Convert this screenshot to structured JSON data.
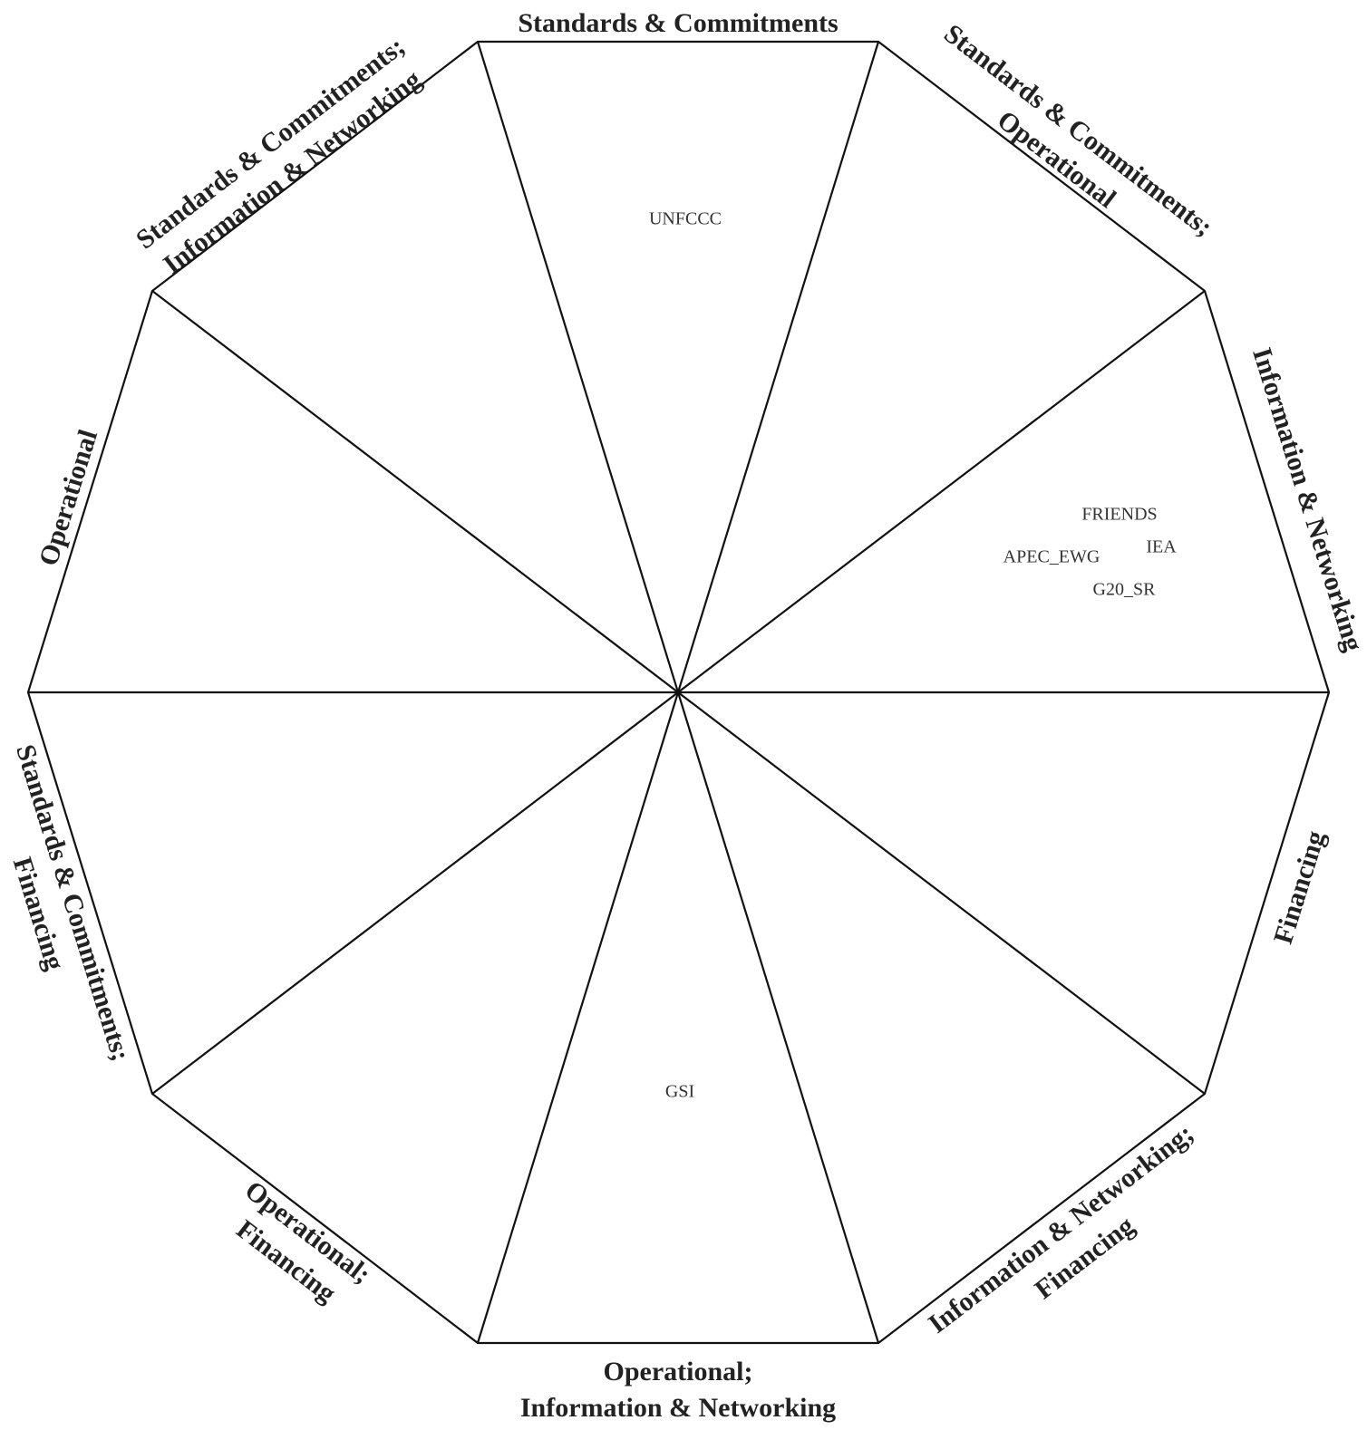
{
  "categories": [
    {
      "lines": [
        "Standards & Commitments"
      ]
    },
    {
      "lines": [
        "Standards & Commitments;",
        "Operational"
      ]
    },
    {
      "lines": [
        "Information & Networking"
      ]
    },
    {
      "lines": [
        "Financing"
      ]
    },
    {
      "lines": [
        "Information & Networking;",
        "Financing"
      ]
    },
    {
      "lines": [
        "Operational;",
        "Information & Networking"
      ]
    },
    {
      "lines": [
        "Operational;",
        "Financing"
      ]
    },
    {
      "lines": [
        "Standards & Commitments;",
        "Financing"
      ]
    },
    {
      "lines": [
        "Operational"
      ]
    },
    {
      "lines": [
        "Standards & Commitments;",
        "Information & Networking"
      ]
    }
  ],
  "items": [
    {
      "label": "UNFCCC",
      "sector": "Standards & Commitments"
    },
    {
      "label": "FRIENDS",
      "sector": "Information & Networking"
    },
    {
      "label": "IEA",
      "sector": "Information & Networking"
    },
    {
      "label": "APEC_EWG",
      "sector": "Information & Networking"
    },
    {
      "label": "G20_SR",
      "sector": "Information & Networking"
    },
    {
      "label": "GSI",
      "sector": "Operational; Information & Networking"
    }
  ]
}
